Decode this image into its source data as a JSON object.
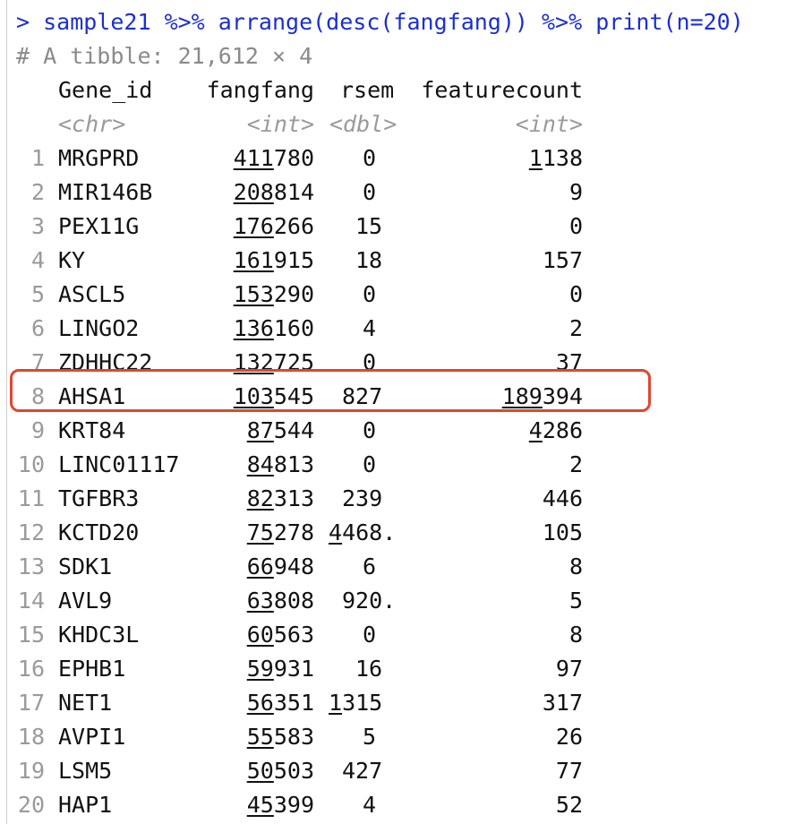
{
  "console": {
    "command": "> sample21 %>% arrange(desc(fangfang)) %>% print(n=20)",
    "tibble_info": "# A tibble: 21,612 × 4",
    "accent_color": "#1b2fcf",
    "highlight_color": "#e0462f"
  },
  "table": {
    "headers": [
      "Gene_id",
      "fangfang",
      "rsem",
      "featurecount"
    ],
    "types": [
      "<chr>",
      "<int>",
      "<dbl>",
      "<int>"
    ],
    "rows": [
      {
        "idx": "1",
        "gene": "MRGPRD",
        "ff_u": "411",
        "ff_r": "780",
        "rs_u": "",
        "rs_r": "0",
        "fc_u": "1",
        "fc_r": "138"
      },
      {
        "idx": "2",
        "gene": "MIR146B",
        "ff_u": "208",
        "ff_r": "814",
        "rs_u": "",
        "rs_r": "0",
        "fc_u": "",
        "fc_r": "9"
      },
      {
        "idx": "3",
        "gene": "PEX11G",
        "ff_u": "176",
        "ff_r": "266",
        "rs_u": "",
        "rs_r": "15",
        "fc_u": "",
        "fc_r": "0"
      },
      {
        "idx": "4",
        "gene": "KY",
        "ff_u": "161",
        "ff_r": "915",
        "rs_u": "",
        "rs_r": "18",
        "fc_u": "",
        "fc_r": "157"
      },
      {
        "idx": "5",
        "gene": "ASCL5",
        "ff_u": "153",
        "ff_r": "290",
        "rs_u": "",
        "rs_r": "0",
        "fc_u": "",
        "fc_r": "0"
      },
      {
        "idx": "6",
        "gene": "LINGO2",
        "ff_u": "136",
        "ff_r": "160",
        "rs_u": "",
        "rs_r": "4",
        "fc_u": "",
        "fc_r": "2"
      },
      {
        "idx": "7",
        "gene": "ZDHHC22",
        "ff_u": "132",
        "ff_r": "725",
        "rs_u": "",
        "rs_r": "0",
        "fc_u": "",
        "fc_r": "37"
      },
      {
        "idx": "8",
        "gene": "AHSA1",
        "ff_u": "103",
        "ff_r": "545",
        "rs_u": "",
        "rs_r": "827",
        "fc_u": "189",
        "fc_r": "394"
      },
      {
        "idx": "9",
        "gene": "KRT84",
        "ff_u": "87",
        "ff_r": "544",
        "rs_u": "",
        "rs_r": "0",
        "fc_u": "4",
        "fc_r": "286"
      },
      {
        "idx": "10",
        "gene": "LINC01117",
        "ff_u": "84",
        "ff_r": "813",
        "rs_u": "",
        "rs_r": "0",
        "fc_u": "",
        "fc_r": "2"
      },
      {
        "idx": "11",
        "gene": "TGFBR3",
        "ff_u": "82",
        "ff_r": "313",
        "rs_u": "",
        "rs_r": "239",
        "fc_u": "",
        "fc_r": "446"
      },
      {
        "idx": "12",
        "gene": "KCTD20",
        "ff_u": "75",
        "ff_r": "278",
        "rs_u": "4",
        "rs_r": "468.",
        "fc_u": "",
        "fc_r": "105"
      },
      {
        "idx": "13",
        "gene": "SDK1",
        "ff_u": "66",
        "ff_r": "948",
        "rs_u": "",
        "rs_r": "6",
        "fc_u": "",
        "fc_r": "8"
      },
      {
        "idx": "14",
        "gene": "AVL9",
        "ff_u": "63",
        "ff_r": "808",
        "rs_u": "",
        "rs_r": "920.",
        "fc_u": "",
        "fc_r": "5"
      },
      {
        "idx": "15",
        "gene": "KHDC3L",
        "ff_u": "60",
        "ff_r": "563",
        "rs_u": "",
        "rs_r": "0",
        "fc_u": "",
        "fc_r": "8"
      },
      {
        "idx": "16",
        "gene": "EPHB1",
        "ff_u": "59",
        "ff_r": "931",
        "rs_u": "",
        "rs_r": "16",
        "fc_u": "",
        "fc_r": "97"
      },
      {
        "idx": "17",
        "gene": "NET1",
        "ff_u": "56",
        "ff_r": "351",
        "rs_u": "1",
        "rs_r": "315",
        "fc_u": "",
        "fc_r": "317"
      },
      {
        "idx": "18",
        "gene": "AVPI1",
        "ff_u": "55",
        "ff_r": "583",
        "rs_u": "",
        "rs_r": "5",
        "fc_u": "",
        "fc_r": "26"
      },
      {
        "idx": "19",
        "gene": "LSM5",
        "ff_u": "50",
        "ff_r": "503",
        "rs_u": "",
        "rs_r": "427",
        "fc_u": "",
        "fc_r": "77"
      },
      {
        "idx": "20",
        "gene": "HAP1",
        "ff_u": "45",
        "ff_r": "399",
        "rs_u": "",
        "rs_r": "4",
        "fc_u": "",
        "fc_r": "52"
      }
    ]
  }
}
